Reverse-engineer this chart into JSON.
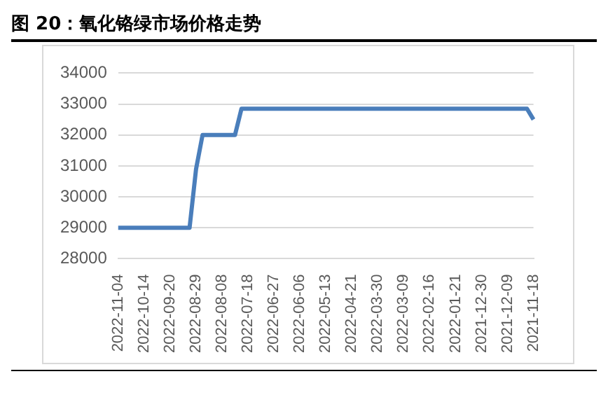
{
  "chart_data": {
    "type": "line",
    "title": "图 20：氧化铬绿市场价格走势",
    "categories": [
      "2022-11-04",
      null,
      null,
      null,
      "2022-10-14",
      null,
      null,
      null,
      "2022-09-20",
      null,
      null,
      null,
      "2022-08-29",
      null,
      null,
      null,
      "2022-08-08",
      null,
      null,
      null,
      "2022-07-18",
      null,
      null,
      null,
      "2022-06-27",
      null,
      null,
      null,
      "2022-06-06",
      null,
      null,
      null,
      "2022-05-13",
      null,
      null,
      null,
      "2022-04-21",
      null,
      null,
      null,
      "2022-03-30",
      null,
      null,
      null,
      "2022-03-09",
      null,
      null,
      null,
      "2022-02-16",
      null,
      null,
      null,
      "2022-01-21",
      null,
      null,
      null,
      "2021-12-30",
      null,
      null,
      null,
      "2021-12-09",
      null,
      null,
      null,
      "2021-11-18"
    ],
    "series": [
      {
        "color": "#4a7ebb",
        "values": [
          29000,
          29000,
          29000,
          29000,
          29000,
          29000,
          29000,
          29000,
          29000,
          29000,
          29000,
          29000,
          30900,
          32000,
          32000,
          32000,
          32000,
          32000,
          32000,
          32850,
          32850,
          32850,
          32850,
          32850,
          32850,
          32850,
          32850,
          32850,
          32850,
          32850,
          32850,
          32850,
          32850,
          32850,
          32850,
          32850,
          32850,
          32850,
          32850,
          32850,
          32850,
          32850,
          32850,
          32850,
          32850,
          32850,
          32850,
          32850,
          32850,
          32850,
          32850,
          32850,
          32850,
          32850,
          32850,
          32850,
          32850,
          32850,
          32850,
          32850,
          32850,
          32850,
          32850,
          32850,
          32500
        ]
      }
    ],
    "ylim": [
      28000,
      34000
    ],
    "yticks": [
      28000,
      29000,
      30000,
      31000,
      32000,
      33000,
      34000
    ],
    "grid": "y",
    "legend": false,
    "marker": "none",
    "line_style": "solid"
  }
}
